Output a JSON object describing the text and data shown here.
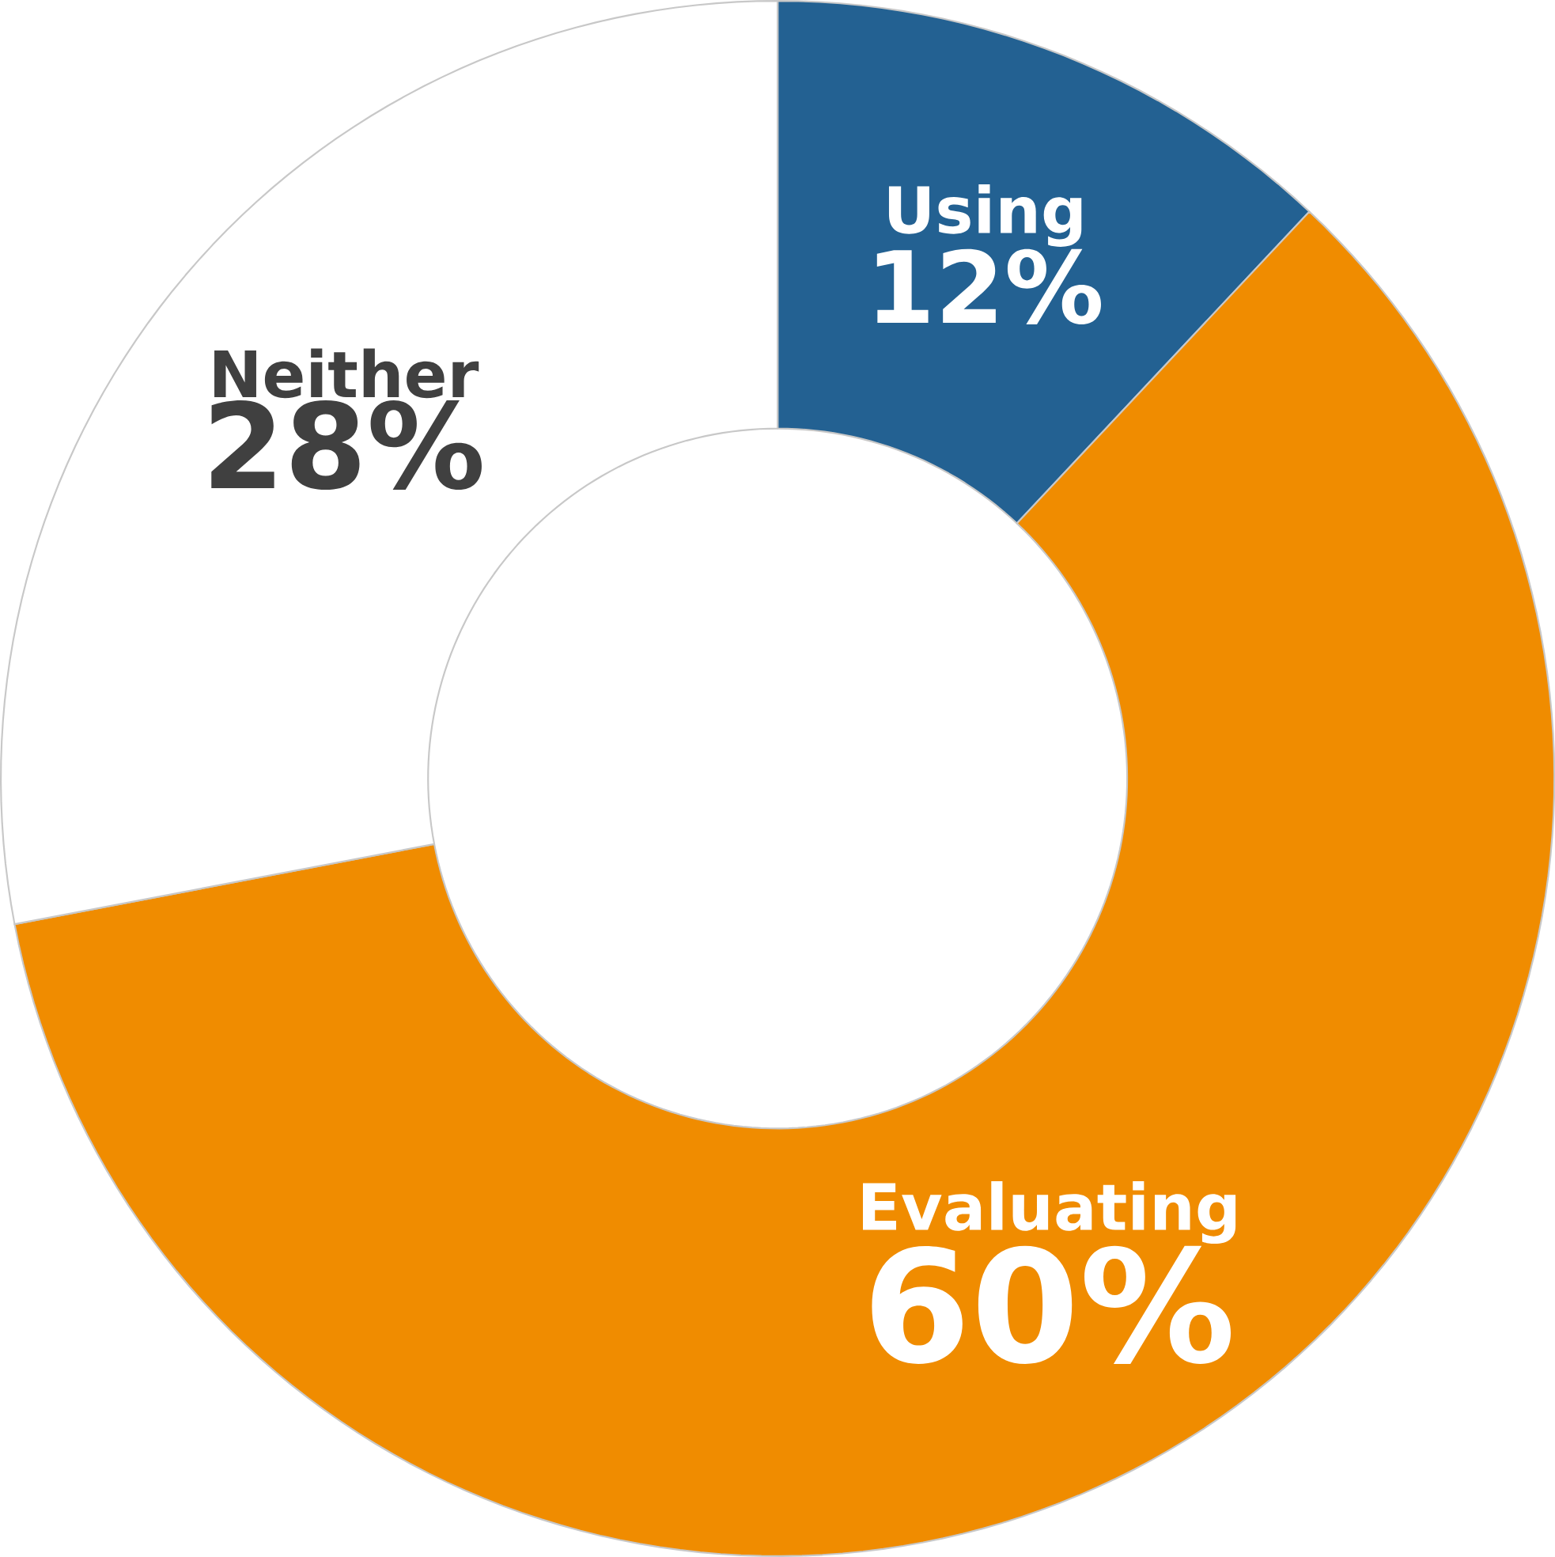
{
  "chart_data": {
    "type": "donut",
    "categories": [
      "Using",
      "Evaluating",
      "Neither"
    ],
    "values": [
      12,
      60,
      28
    ],
    "colors": [
      "#236192",
      "#f08c00",
      "#ffffff"
    ],
    "value_labels": [
      "12%",
      "60%",
      "28%"
    ],
    "legend": false
  }
}
